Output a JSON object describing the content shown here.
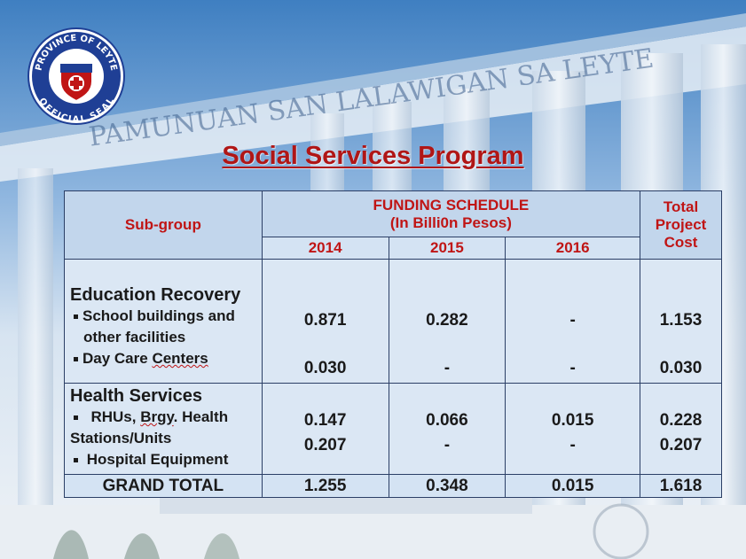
{
  "seal": {
    "text_top": "PROVINCE OF LEYTE",
    "text_bottom": "OFFICIAL SEAL"
  },
  "building_sign": "PAMUNUAN SAN LALAWIGAN SA LEYTE",
  "title": "Social Services Program",
  "table": {
    "header_subgroup": "Sub-group",
    "header_funding_1": "FUNDING SCHEDULE",
    "header_funding_2": "(In Billi0n Pesos)",
    "header_total": [
      "Total",
      "Project",
      "Cost"
    ],
    "years": [
      "2014",
      "2015",
      "2016"
    ],
    "education": {
      "group": "Education Recovery",
      "item1_line1": "School buildings and",
      "item1_line2": "other facilities",
      "item1_values": [
        "0.871",
        "0.282",
        "-",
        "1.153"
      ],
      "item2": "Day Care Centers",
      "item2_prefix": "Day Care ",
      "item2_underlined": "Centers",
      "item2_values": [
        "0.030",
        "-",
        "-",
        "0.030"
      ]
    },
    "health": {
      "group": "Health Services",
      "item1_line1": "RHUs, Brgy. Health",
      "item1_pre": "RHUs, ",
      "item1_underlined": "Brgy",
      "item1_post": ". Health",
      "item1_line2": "Stations/Units",
      "item1_values": [
        "0.147",
        "0.066",
        "0.015",
        "0.228"
      ],
      "item2": "Hospital Equipment",
      "item2_values": [
        "0.207",
        "-",
        "-",
        "0.207"
      ]
    },
    "grand_total": {
      "label": "GRAND TOTAL",
      "values": [
        "1.255",
        "0.348",
        "0.015",
        "1.618"
      ]
    }
  },
  "colors": {
    "title": "#b01616",
    "header_text": "#c01515",
    "table_border": "#2b3f66",
    "seal_blue": "#1f3f95"
  }
}
